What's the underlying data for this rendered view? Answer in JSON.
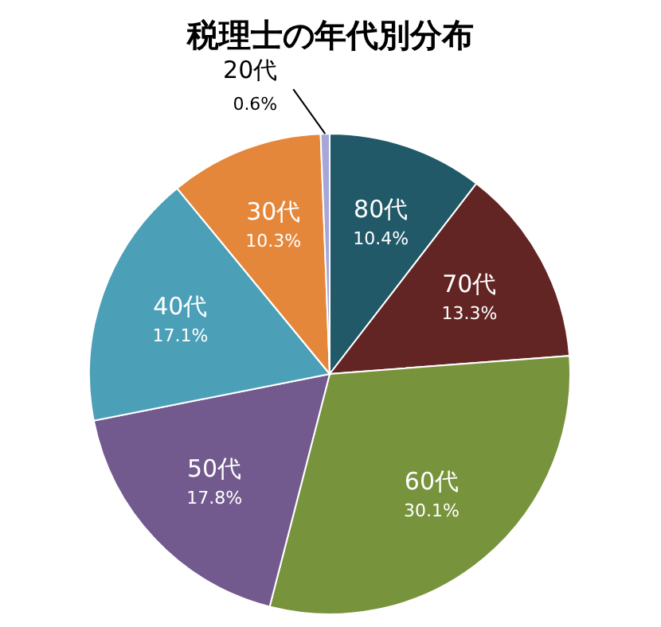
{
  "chart_data": {
    "type": "pie",
    "title": "税理士の年代別分布",
    "categories": [
      "80代",
      "70代",
      "60代",
      "50代",
      "40代",
      "30代",
      "20代"
    ],
    "values": [
      10.4,
      13.3,
      30.1,
      17.8,
      17.1,
      10.3,
      0.6
    ],
    "value_labels": [
      "10.4%",
      "13.3%",
      "30.1%",
      "17.8%",
      "17.1%",
      "10.3%",
      "0.6%"
    ],
    "colors": [
      "#215968",
      "#632523",
      "#77933c",
      "#725a8e",
      "#4ba0b8",
      "#e5873a",
      "#a6a6d8"
    ],
    "legend": false
  }
}
